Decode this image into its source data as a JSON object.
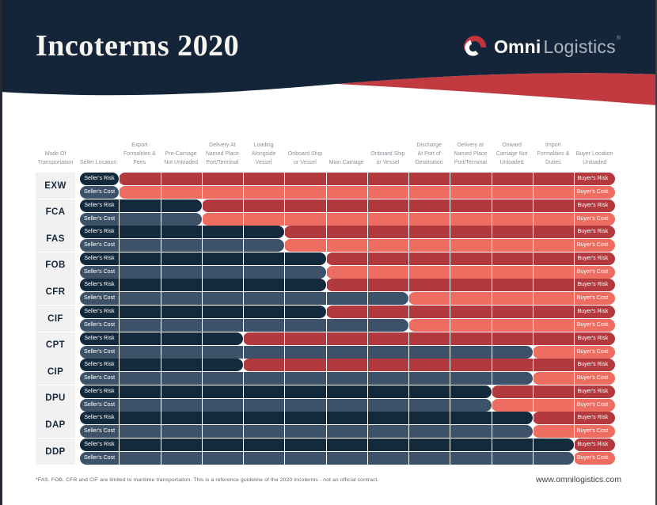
{
  "header": {
    "title": "Incoterms 2020",
    "logo": {
      "brand_bold": "Omni",
      "brand_light": "Logistics",
      "reg_mark": "®"
    }
  },
  "colors": {
    "header_navy": "#14253a",
    "swoosh_red": "#c03a40",
    "seller_risk_bar": "#13293c",
    "seller_cost_bar": "#3d5269",
    "buyer_risk_bar": "#b23a3f",
    "buyer_cost_bar": "#ed6d61",
    "mode_cell_bg": "#f1f1f2",
    "column_header_text": "#8c9198"
  },
  "chart_data": {
    "type": "table",
    "title": "Incoterms 2020",
    "columns": [
      [
        "Mode Of",
        "Transportation"
      ],
      [
        "Seller Location"
      ],
      [
        "Export",
        "Formalities &",
        "Fees"
      ],
      [
        "Pre-Carriage",
        "Not Unloaded"
      ],
      [
        "Delivery At",
        "Named Place",
        "Port/Terminal"
      ],
      [
        "Loading",
        "Alongside",
        "Vessel"
      ],
      [
        "Onboard Ship",
        "or Vessel"
      ],
      [
        "Main Carriage"
      ],
      [
        "Onboard Ship",
        "or Vessel"
      ],
      [
        "Discharge",
        "At Port of",
        "Destination"
      ],
      [
        "Delivery at",
        "Named Place",
        "Port/Terminal"
      ],
      [
        "Onward",
        "Carriage Not",
        "Unloaded"
      ],
      [
        "Import",
        "Formalities &",
        "Duties"
      ],
      [
        "Buyer Location",
        "Unloaded"
      ]
    ],
    "bar_labels": {
      "seller_risk": "Seller's Risk",
      "seller_cost": "Seller's Cost",
      "buyer_risk": "Buyer's Risk",
      "buyer_cost": "Buyer's Cost"
    },
    "rows": [
      {
        "code": "EXW",
        "seller_risk_through_column": 2,
        "seller_cost_through_column": 2
      },
      {
        "code": "FCA",
        "seller_risk_through_column": 4,
        "seller_cost_through_column": 4
      },
      {
        "code": "FAS",
        "seller_risk_through_column": 6,
        "seller_cost_through_column": 6
      },
      {
        "code": "FOB",
        "seller_risk_through_column": 7,
        "seller_cost_through_column": 7
      },
      {
        "code": "CFR",
        "seller_risk_through_column": 7,
        "seller_cost_through_column": 9
      },
      {
        "code": "CIF",
        "seller_risk_through_column": 7,
        "seller_cost_through_column": 9
      },
      {
        "code": "CPT",
        "seller_risk_through_column": 5,
        "seller_cost_through_column": 12
      },
      {
        "code": "CIP",
        "seller_risk_through_column": 5,
        "seller_cost_through_column": 12
      },
      {
        "code": "DPU",
        "seller_risk_through_column": 11,
        "seller_cost_through_column": 11
      },
      {
        "code": "DAP",
        "seller_risk_through_column": 12,
        "seller_cost_through_column": 12
      },
      {
        "code": "DDP",
        "seller_risk_through_column": 13,
        "seller_cost_through_column": 13
      }
    ]
  },
  "footer": {
    "disclaimer": "*FAS, FOB, CFR and CIF are limited to maritime transportation. This is a reference guideline of the 2020 Incoterms - not an official contract.",
    "website": "www.omnilogistics.com"
  }
}
